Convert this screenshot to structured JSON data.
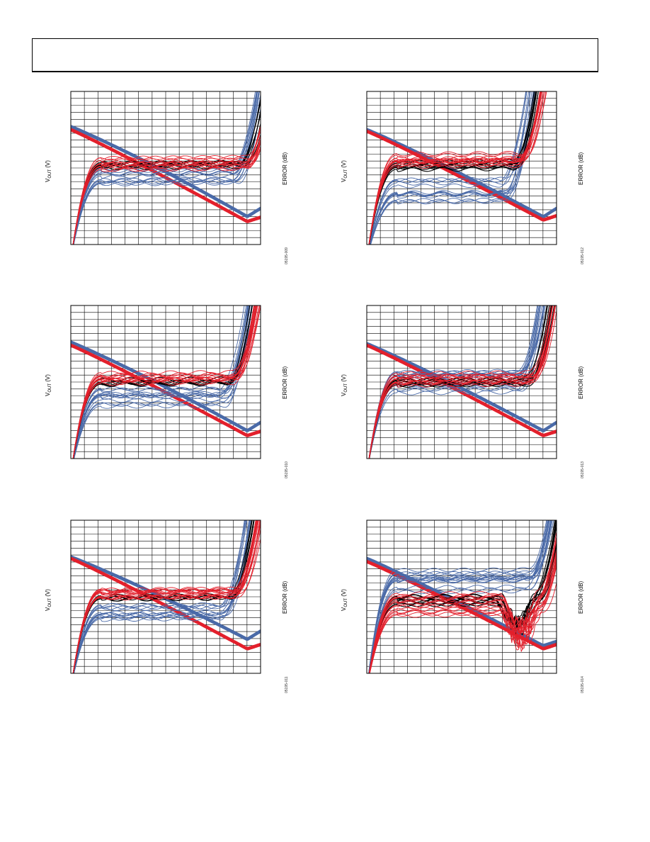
{
  "header": {
    "title": ""
  },
  "colors": {
    "red": "#e3202c",
    "blue": "#4a6aa8",
    "black": "#000000",
    "grid": "#000000"
  },
  "chart_data": [
    {
      "type": "line",
      "left_axis_label": {
        "main": "V",
        "sub": "OUT",
        "unit": "(V)"
      },
      "right_axis_label": "ERROR (dB)",
      "figure_code": "05195-009",
      "grid": true,
      "notes": "Curve shapes estimated; no numeric tick labels printed.",
      "series": [
        {
          "color_key": "blue",
          "role": "error",
          "level": 0.46,
          "spread": 0.07,
          "count": 14,
          "rise_at": 0.86
        },
        {
          "color_key": "black",
          "role": "error",
          "level": 0.52,
          "spread": 0.02,
          "count": 6,
          "rise_at": 0.9
        },
        {
          "color_key": "red",
          "role": "error",
          "level": 0.53,
          "spread": 0.04,
          "count": 14,
          "rise_at": 0.93
        },
        {
          "color_key": "blue",
          "role": "vout",
          "start": 0.77,
          "end": 0.18,
          "bump": 0.04
        },
        {
          "color_key": "red",
          "role": "vout",
          "start": 0.75,
          "end": 0.15,
          "bump": 0.0
        }
      ]
    },
    {
      "type": "line",
      "left_axis_label": {
        "main": "V",
        "sub": "OUT",
        "unit": "(V)"
      },
      "right_axis_label": "ERROR (dB)",
      "figure_code": "05195-012",
      "grid": true,
      "notes": "Curve shapes estimated; no numeric tick labels printed.",
      "series": [
        {
          "color_key": "blue",
          "role": "error",
          "level": 0.35,
          "spread": 0.08,
          "count": 14,
          "rise_at": 0.72
        },
        {
          "color_key": "black",
          "role": "error",
          "level": 0.52,
          "spread": 0.03,
          "count": 8,
          "rise_at": 0.78
        },
        {
          "color_key": "red",
          "role": "error",
          "level": 0.56,
          "spread": 0.05,
          "count": 16,
          "rise_at": 0.81
        },
        {
          "color_key": "blue",
          "role": "vout",
          "start": 0.75,
          "end": 0.18,
          "bump": 0.02
        },
        {
          "color_key": "red",
          "role": "vout",
          "start": 0.74,
          "end": 0.16,
          "bump": 0.0
        }
      ]
    },
    {
      "type": "line",
      "left_axis_label": {
        "main": "V",
        "sub": "OUT",
        "unit": "(V)"
      },
      "right_axis_label": "ERROR (dB)",
      "figure_code": "05195-010",
      "grid": true,
      "notes": "Curve shapes estimated; no numeric tick labels printed.",
      "series": [
        {
          "color_key": "blue",
          "role": "error",
          "level": 0.4,
          "spread": 0.06,
          "count": 14,
          "rise_at": 0.8
        },
        {
          "color_key": "black",
          "role": "error",
          "level": 0.5,
          "spread": 0.02,
          "count": 6,
          "rise_at": 0.83
        },
        {
          "color_key": "red",
          "role": "error",
          "level": 0.53,
          "spread": 0.04,
          "count": 14,
          "rise_at": 0.86
        },
        {
          "color_key": "blue",
          "role": "vout",
          "start": 0.76,
          "end": 0.18,
          "bump": 0.03
        },
        {
          "color_key": "red",
          "role": "vout",
          "start": 0.74,
          "end": 0.15,
          "bump": 0.0
        }
      ]
    },
    {
      "type": "line",
      "left_axis_label": {
        "main": "V",
        "sub": "OUT",
        "unit": "(V)"
      },
      "right_axis_label": "ERROR (dB)",
      "figure_code": "05195-013",
      "grid": true,
      "notes": "Curve shapes estimated; no numeric tick labels printed.",
      "series": [
        {
          "color_key": "blue",
          "role": "error",
          "level": 0.5,
          "spread": 0.07,
          "count": 14,
          "rise_at": 0.8
        },
        {
          "color_key": "black",
          "role": "error",
          "level": 0.5,
          "spread": 0.03,
          "count": 8,
          "rise_at": 0.84
        },
        {
          "color_key": "red",
          "role": "error",
          "level": 0.52,
          "spread": 0.04,
          "count": 14,
          "rise_at": 0.87
        },
        {
          "color_key": "blue",
          "role": "vout",
          "start": 0.75,
          "end": 0.18,
          "bump": 0.02
        },
        {
          "color_key": "red",
          "role": "vout",
          "start": 0.74,
          "end": 0.15,
          "bump": 0.0
        }
      ]
    },
    {
      "type": "line",
      "left_axis_label": {
        "main": "V",
        "sub": "OUT",
        "unit": "(V)"
      },
      "right_axis_label": "ERROR (dB)",
      "figure_code": "05195-011",
      "grid": true,
      "notes": "Curve shapes estimated; no numeric tick labels printed.",
      "series": [
        {
          "color_key": "blue",
          "role": "error",
          "level": 0.4,
          "spread": 0.05,
          "count": 14,
          "rise_at": 0.8
        },
        {
          "color_key": "black",
          "role": "error",
          "level": 0.5,
          "spread": 0.02,
          "count": 6,
          "rise_at": 0.84
        },
        {
          "color_key": "red",
          "role": "error",
          "level": 0.52,
          "spread": 0.03,
          "count": 16,
          "rise_at": 0.87
        },
        {
          "color_key": "blue",
          "role": "vout",
          "start": 0.76,
          "end": 0.22,
          "bump": 0.03
        },
        {
          "color_key": "red",
          "role": "vout",
          "start": 0.75,
          "end": 0.16,
          "bump": 0.0
        }
      ]
    },
    {
      "type": "line",
      "left_axis_label": {
        "main": "V",
        "sub": "OUT",
        "unit": "(V)"
      },
      "right_axis_label": "ERROR (dB)",
      "figure_code": "05195-014",
      "grid": true,
      "notes": "Curve shapes estimated; no numeric tick labels printed.",
      "series": [
        {
          "color_key": "blue",
          "role": "error",
          "level": 0.6,
          "spread": 0.08,
          "count": 16,
          "rise_at": 0.86,
          "dip": 0.0
        },
        {
          "color_key": "black",
          "role": "error",
          "level": 0.48,
          "spread": 0.03,
          "count": 10,
          "rise_at": 0.88,
          "dip": 0.2
        },
        {
          "color_key": "red",
          "role": "error",
          "level": 0.45,
          "spread": 0.08,
          "count": 16,
          "rise_at": 0.9,
          "dip": 0.25
        },
        {
          "color_key": "blue",
          "role": "vout",
          "start": 0.75,
          "end": 0.18,
          "bump": 0.0,
          "knee": 0.78
        },
        {
          "color_key": "red",
          "role": "vout",
          "start": 0.73,
          "end": 0.16,
          "bump": 0.0,
          "knee": 0.78
        }
      ]
    }
  ]
}
